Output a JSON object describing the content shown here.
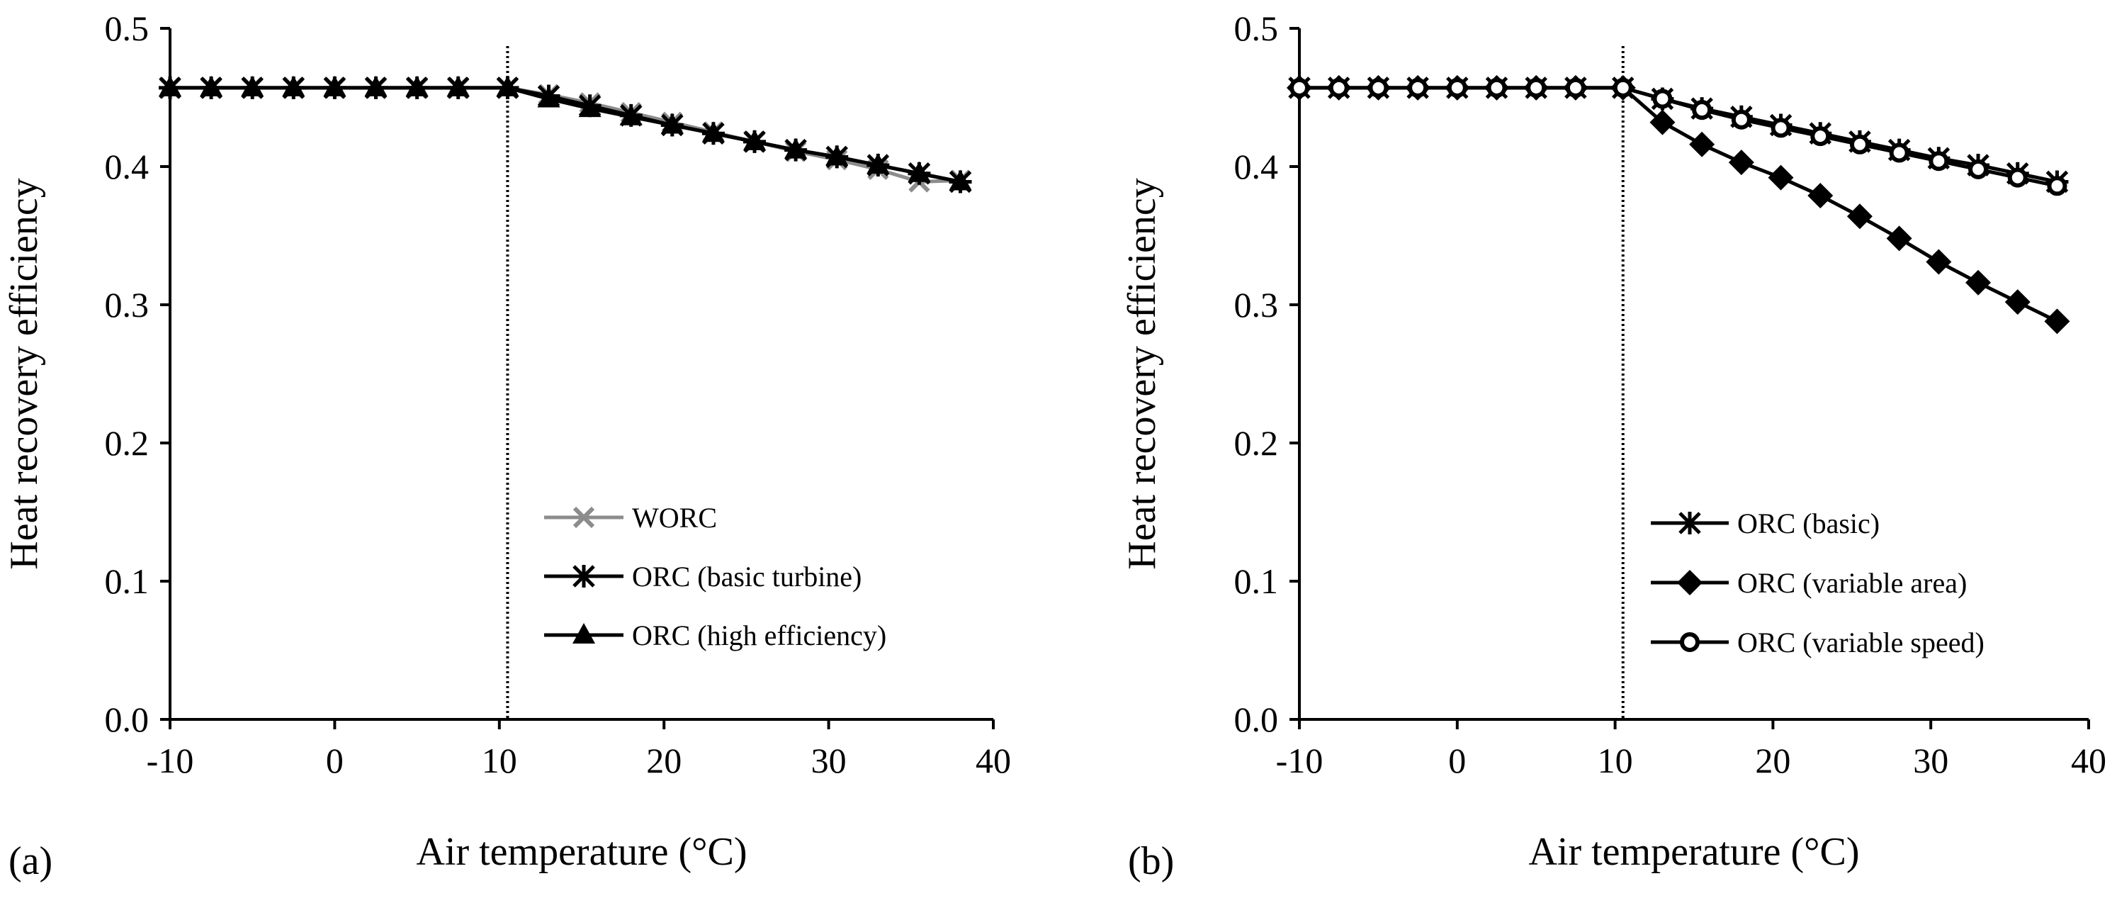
{
  "chart_data": [
    {
      "type": "line",
      "panel_label": "(a)",
      "xlabel": "Air temperature (°C)",
      "ylabel": "Heat recovery efficiency",
      "xlim": [
        -10,
        40
      ],
      "ylim": [
        0.0,
        0.5
      ],
      "xticks": [
        "-10",
        "0",
        "10",
        "20",
        "30",
        "40"
      ],
      "yticks": [
        "0.0",
        "0.1",
        "0.2",
        "0.3",
        "0.4",
        "0.5"
      ],
      "vline_x": 10.5,
      "legend_position": "center-right",
      "x": [
        -10,
        -7.5,
        -5,
        -2.5,
        0,
        2.5,
        5,
        7.5,
        10.5,
        13,
        15.5,
        18,
        20.5,
        23,
        25.5,
        28,
        30.5,
        33,
        35.5,
        38
      ],
      "series": [
        {
          "name": "WORC",
          "marker": "x",
          "color": "#8c8c8c",
          "values": [
            0.457,
            0.457,
            0.457,
            0.457,
            0.457,
            0.457,
            0.457,
            0.457,
            0.457,
            0.452,
            0.446,
            0.439,
            0.432,
            0.425,
            0.418,
            0.411,
            0.405,
            0.398,
            0.389,
            0.39
          ]
        },
        {
          "name": "ORC (basic turbine)",
          "marker": "star",
          "color": "#000000",
          "values": [
            0.457,
            0.457,
            0.457,
            0.457,
            0.457,
            0.457,
            0.457,
            0.457,
            0.457,
            0.451,
            0.444,
            0.437,
            0.43,
            0.424,
            0.418,
            0.412,
            0.407,
            0.401,
            0.395,
            0.389
          ]
        },
        {
          "name": "ORC (high efficiency)",
          "marker": "triangle",
          "color": "#000000",
          "values": [
            0.457,
            0.457,
            0.457,
            0.457,
            0.457,
            0.457,
            0.457,
            0.457,
            0.457,
            0.449,
            0.442,
            0.436,
            0.43,
            0.424,
            0.418,
            0.412,
            0.407,
            0.401,
            0.395,
            0.389
          ]
        }
      ]
    },
    {
      "type": "line",
      "panel_label": "(b)",
      "xlabel": "Air temperature (°C)",
      "ylabel": "Heat recovery efficiency",
      "xlim": [
        -10,
        40
      ],
      "ylim": [
        0.0,
        0.5
      ],
      "xticks": [
        "-10",
        "0",
        "10",
        "20",
        "30",
        "40"
      ],
      "yticks": [
        "0.0",
        "0.1",
        "0.2",
        "0.3",
        "0.4",
        "0.5"
      ],
      "vline_x": 10.5,
      "legend_position": "bottom-right",
      "x": [
        -10,
        -7.5,
        -5,
        -2.5,
        0,
        2.5,
        5,
        7.5,
        10.5,
        13,
        15.5,
        18,
        20.5,
        23,
        25.5,
        28,
        30.5,
        33,
        35.5,
        38
      ],
      "series": [
        {
          "name": "ORC (basic)",
          "marker": "star",
          "color": "#000000",
          "values": [
            0.457,
            0.457,
            0.457,
            0.457,
            0.457,
            0.457,
            0.457,
            0.457,
            0.457,
            0.449,
            0.442,
            0.436,
            0.43,
            0.424,
            0.418,
            0.412,
            0.406,
            0.401,
            0.395,
            0.389
          ]
        },
        {
          "name": "ORC (variable area)",
          "marker": "diamond",
          "color": "#000000",
          "values": [
            0.457,
            0.457,
            0.457,
            0.457,
            0.457,
            0.457,
            0.457,
            0.457,
            0.457,
            0.432,
            0.416,
            0.403,
            0.392,
            0.379,
            0.364,
            0.348,
            0.331,
            0.316,
            0.302,
            0.288
          ]
        },
        {
          "name": "ORC (variable speed)",
          "marker": "circle-open",
          "color": "#000000",
          "values": [
            0.457,
            0.457,
            0.457,
            0.457,
            0.457,
            0.457,
            0.457,
            0.457,
            0.457,
            0.449,
            0.441,
            0.434,
            0.428,
            0.422,
            0.416,
            0.41,
            0.404,
            0.398,
            0.392,
            0.386
          ]
        }
      ]
    }
  ]
}
